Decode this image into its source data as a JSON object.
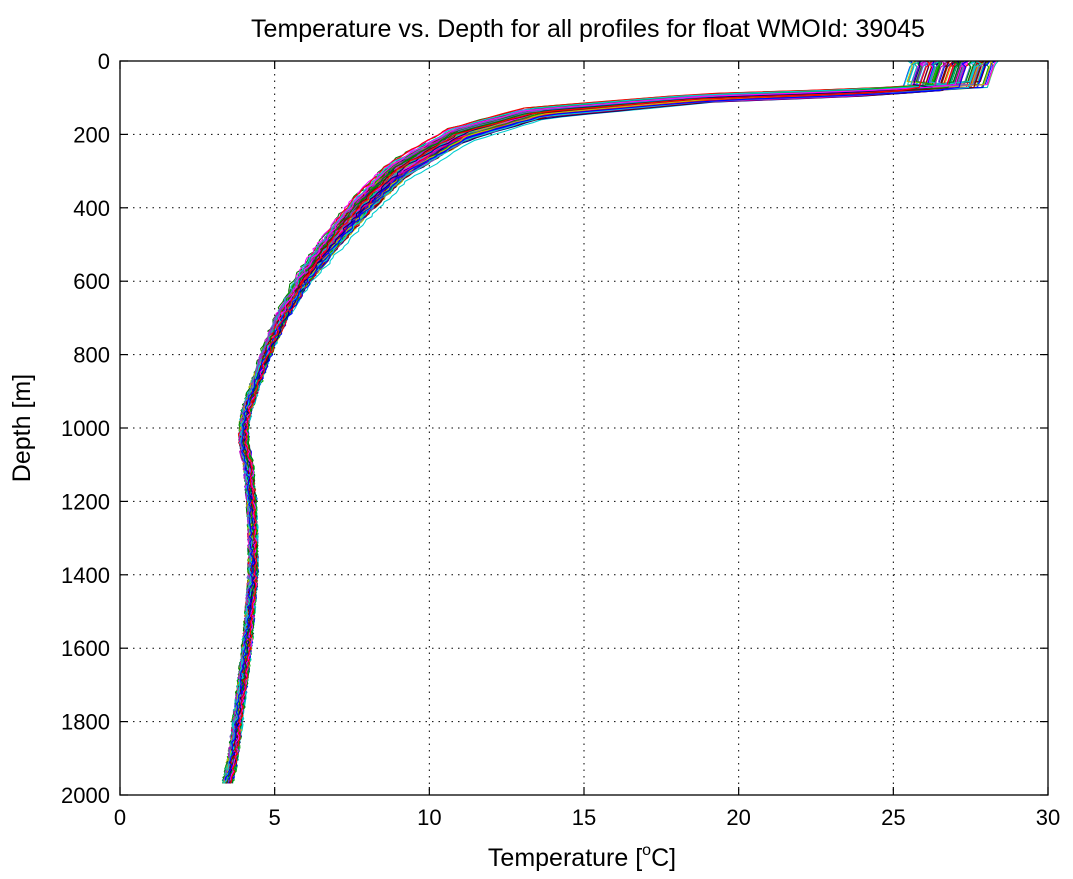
{
  "chart_data": {
    "type": "line",
    "title": "Temperature vs. Depth for all profiles for float WMOId: 39045",
    "xlabel": {
      "prefix": "Temperature [",
      "superscript": "o",
      "suffix": "C]"
    },
    "ylabel": "Depth [m]",
    "xlim": [
      0,
      30
    ],
    "ylim": [
      0,
      2000
    ],
    "y_inverted": true,
    "grid": true,
    "x_ticks": [
      "0",
      "5",
      "10",
      "15",
      "20",
      "25",
      "30"
    ],
    "y_ticks": [
      "0",
      "200",
      "400",
      "600",
      "800",
      "1000",
      "1200",
      "1400",
      "1600",
      "1800",
      "2000"
    ],
    "profile_count": 110,
    "series_colors": [
      "#0000ff",
      "#ff0000",
      "#00aa00",
      "#00bfbf",
      "#bf00bf",
      "#bfbf00",
      "#000080",
      "#008000",
      "#800000",
      "#6a5acd",
      "#ff00ff",
      "#00ced1"
    ],
    "representative_profile": {
      "depth_m": [
        0,
        40,
        70,
        85,
        100,
        140,
        200,
        250,
        300,
        400,
        500,
        600,
        700,
        800,
        900,
        950,
        1000,
        1040,
        1100,
        1200,
        1300,
        1400,
        1500,
        1600,
        1700,
        1800,
        1900,
        1975
      ],
      "temperature_c": [
        27.0,
        27.0,
        26.6,
        24.0,
        19.0,
        13.5,
        11.0,
        10.0,
        9.0,
        7.8,
        6.8,
        5.9,
        5.2,
        4.7,
        4.3,
        4.1,
        4.0,
        4.0,
        4.15,
        4.25,
        4.3,
        4.3,
        4.2,
        4.1,
        3.95,
        3.8,
        3.65,
        3.45
      ]
    }
  }
}
